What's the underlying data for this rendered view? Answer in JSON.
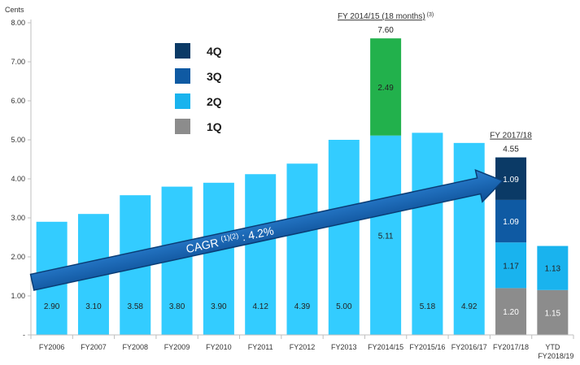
{
  "chart_data": {
    "type": "bar",
    "ylabel": "Cents",
    "yticks": [
      "-",
      "1.00",
      "2.00",
      "3.00",
      "4.00",
      "5.00",
      "6.00",
      "7.00",
      "8.00"
    ],
    "ylim": [
      0,
      8
    ],
    "grid": false,
    "legend_position": "top-left",
    "legend": [
      {
        "label": "4Q",
        "color": "#0b3a66"
      },
      {
        "label": "3Q",
        "color": "#0f5aa3"
      },
      {
        "label": "2Q",
        "color": "#19b3ee"
      },
      {
        "label": "1Q",
        "color": "#8c8c8c"
      }
    ],
    "colors": {
      "default": "#33ccff",
      "extra": "#22b14c",
      "q4": "#0b3a66",
      "q3": "#0f5aa3",
      "q2": "#19b3ee",
      "q1": "#8c8c8c"
    },
    "bars": [
      {
        "category": "FY2006",
        "segments": [
          {
            "value": 2.9,
            "label": "2.90",
            "kind": "default"
          }
        ]
      },
      {
        "category": "FY2007",
        "segments": [
          {
            "value": 3.1,
            "label": "3.10",
            "kind": "default"
          }
        ]
      },
      {
        "category": "FY2008",
        "segments": [
          {
            "value": 3.58,
            "label": "3.58",
            "kind": "default"
          }
        ]
      },
      {
        "category": "FY2009",
        "segments": [
          {
            "value": 3.8,
            "label": "3.80",
            "kind": "default"
          }
        ]
      },
      {
        "category": "FY2010",
        "segments": [
          {
            "value": 3.9,
            "label": "3.90",
            "kind": "default"
          }
        ]
      },
      {
        "category": "FY2011",
        "segments": [
          {
            "value": 4.12,
            "label": "4.12",
            "kind": "default"
          }
        ]
      },
      {
        "category": "FY2012",
        "segments": [
          {
            "value": 4.39,
            "label": "4.39",
            "kind": "default"
          }
        ]
      },
      {
        "category": "FY2013",
        "segments": [
          {
            "value": 5.0,
            "label": "5.00",
            "kind": "default"
          }
        ]
      },
      {
        "category": "FY2014/15",
        "segments": [
          {
            "value": 5.11,
            "label": "5.11",
            "kind": "default"
          },
          {
            "value": 2.49,
            "label": "2.49",
            "kind": "extra"
          }
        ],
        "total": "7.60",
        "annotation": "FY 2014/15 (18 months)",
        "annotation_sup": "(3)"
      },
      {
        "category": "FY2015/16",
        "segments": [
          {
            "value": 5.18,
            "label": "5.18",
            "kind": "default"
          }
        ]
      },
      {
        "category": "FY2016/17",
        "segments": [
          {
            "value": 4.92,
            "label": "4.92",
            "kind": "default"
          }
        ]
      },
      {
        "category": "FY2017/18",
        "segments": [
          {
            "value": 1.2,
            "label": "1.20",
            "kind": "q1"
          },
          {
            "value": 1.17,
            "label": "1.17",
            "kind": "q2"
          },
          {
            "value": 1.09,
            "label": "1.09",
            "kind": "q3"
          },
          {
            "value": 1.09,
            "label": "1.09",
            "kind": "q4"
          }
        ],
        "total": "4.55",
        "annotation": "FY 2017/18"
      },
      {
        "category": "YTD",
        "category_line2": "FY2018/19",
        "segments": [
          {
            "value": 1.15,
            "label": "1.15",
            "kind": "q1"
          },
          {
            "value": 1.13,
            "label": "1.13",
            "kind": "q2"
          }
        ]
      }
    ],
    "trend_arrow": {
      "label": "CAGR",
      "label_sup": "(1)(2)",
      "label_value": ": 4.2%",
      "from": {
        "category": "FY2006",
        "y": 1.35
      },
      "to": {
        "category": "FY2017/18",
        "y": 3.95
      }
    }
  }
}
